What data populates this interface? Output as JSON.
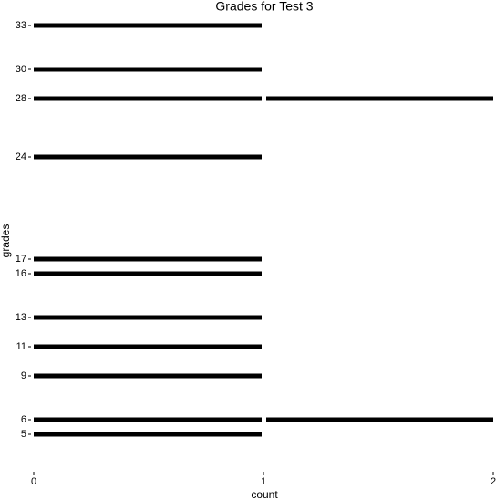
{
  "chart_data": {
    "type": "segments",
    "title": "Grades for Test 3",
    "x_label": "count",
    "y_label": "grades",
    "y": [
      5,
      6,
      9,
      11,
      13,
      16,
      17,
      24,
      28,
      30,
      33
    ],
    "values": [
      1,
      2,
      1,
      1,
      1,
      1,
      1,
      1,
      2,
      1,
      1
    ],
    "color": "#000000",
    "xlim": [
      0,
      2
    ],
    "xticks": [
      0,
      1,
      2
    ],
    "ylim": [
      2.5,
      34.5
    ],
    "yticks": [
      5,
      6,
      9,
      11,
      13,
      16,
      17,
      24,
      28,
      30,
      33
    ],
    "grid": false
  }
}
